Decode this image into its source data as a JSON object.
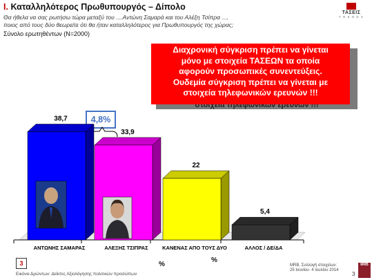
{
  "header": {
    "section_number": "I.",
    "title": "Καταλληλότερος Πρωθυπουργός – Δίπολο",
    "question_line1": "Θα ήθελα να σας ρωτήσω τώρα μεταξύ του ....Αντώνη Σαμαρά και του Αλέξη Τσίπρα ...,",
    "question_line2": "ποιος από τους δύο θεωρείτε ότι θα ήταν καταλληλότερος για Πρωθυπουργός της χώρας;",
    "sample": "Σύνολο ερωτηθέντων (Ν=2000)"
  },
  "logo": {
    "name": "ΤΑΣΕΙΣ",
    "sub": "T R E N D S"
  },
  "banner": {
    "line1": "Διαχρονική σύγκριση πρέπει να γίνεται",
    "line2": "μόνο με στοιχεία ΤΑΣΕΩΝ τα οποία",
    "line3": "αφορούν προσωπικές συνεντεύξεις.",
    "line4": "Ουδεμία σύγκριση πρέπει να γίνεται με",
    "line5": "στοιχεία τηλεφωνικών ερευνών !!!",
    "ghost": "στοιχεία τηλεφωνικών ερευνών !!!"
  },
  "difference_label": "4,8%",
  "chart_data": {
    "type": "bar",
    "categories": [
      "ΑΝΤΩΝΗΣ ΣΑΜΑΡΑΣ",
      "ΑΛΕΞΗΣ ΤΣΙΠΡΑΣ",
      "ΚΑΝΕΝΑΣ ΑΠΟ ΤΟΥΣ ΔΥΟ",
      "ΑΛΛΟΣ / ΔΕ/ΔΑ"
    ],
    "values": [
      38.7,
      33.9,
      22,
      5.4
    ],
    "value_labels": [
      "38,7",
      "33,9",
      "22",
      "5,4"
    ],
    "colors": [
      "#0000ff",
      "#ff00ff",
      "#ffff00",
      "#333333"
    ],
    "ylim": [
      0,
      45
    ],
    "three_d": true,
    "legend": "none",
    "grid": false
  },
  "footer": {
    "box_number": "3",
    "percent_sign": "%",
    "left_text": "Εικόνα Δρώντων: Δείκτες Αξιολόγησης πολιτικών προσώπων",
    "right_line1": "MRB, Συλλογή στοιχείων:",
    "right_line2": "25 Ιουνίου- 4 Ιουλίου 2014",
    "page_number": "3",
    "mrb_logo": "MRB"
  }
}
